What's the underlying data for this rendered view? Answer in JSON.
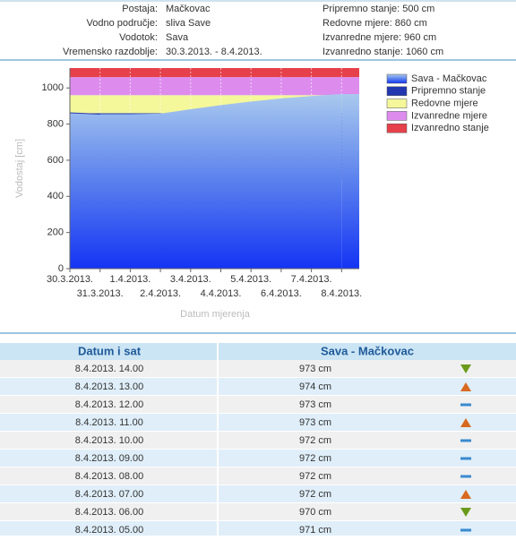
{
  "header": {
    "labels": [
      "Postaja:",
      "Vodno područje:",
      "Vodotok:",
      "Vremensko razdoblje:"
    ],
    "values": [
      "Mačkovac",
      "sliva Save",
      "Sava",
      "30.3.2013. - 8.4.2013."
    ],
    "levels": [
      "Pripremno stanje: 500 cm",
      "Redovne mjere: 860 cm",
      "Izvanredne mjere: 960 cm",
      "Izvanredno stanje: 1060 cm"
    ]
  },
  "chart_data": {
    "type": "area",
    "x_label": "Datum mjerenja",
    "y_label": "Vodostaj [cm]",
    "categories": [
      "30.3.2013.",
      "31.3.2013.",
      "1.4.2013.",
      "2.4.2013.",
      "3.4.2013.",
      "4.4.2013.",
      "5.4.2013.",
      "6.4.2013.",
      "7.4.2013.",
      "8.4.2013."
    ],
    "series": [
      {
        "name": "Sava - Mačkovac",
        "color": "#6d9ee6",
        "values": [
          862,
          855,
          855,
          858,
          882,
          905,
          925,
          942,
          955,
          966
        ]
      }
    ],
    "bands": [
      {
        "name": "Pripremno stanje",
        "color": "#2236b0",
        "from": 500
      },
      {
        "name": "Redovne mjere",
        "color": "#f4f79a",
        "from": 860
      },
      {
        "name": "Izvanredne mjere",
        "color": "#dd8cee",
        "from": 960
      },
      {
        "name": "Izvanredno stanje",
        "color": "#e6404a",
        "from": 1060
      }
    ],
    "ylim": [
      0,
      1110
    ],
    "yticks": [
      0,
      200,
      400,
      600,
      800,
      1000
    ]
  },
  "table": {
    "columns": [
      "Datum i sat",
      "Sava - Mačkovac"
    ],
    "rows": [
      [
        "8.4.2013. 14.00",
        "973 cm",
        "down"
      ],
      [
        "8.4.2013. 13.00",
        "974 cm",
        "up"
      ],
      [
        "8.4.2013. 12.00",
        "973 cm",
        "flat"
      ],
      [
        "8.4.2013. 11.00",
        "973 cm",
        "up"
      ],
      [
        "8.4.2013. 10.00",
        "972 cm",
        "flat"
      ],
      [
        "8.4.2013. 09.00",
        "972 cm",
        "flat"
      ],
      [
        "8.4.2013. 08.00",
        "972 cm",
        "flat"
      ],
      [
        "8.4.2013. 07.00",
        "972 cm",
        "up"
      ],
      [
        "8.4.2013. 06.00",
        "970 cm",
        "down"
      ],
      [
        "8.4.2013. 05.00",
        "971 cm",
        "flat"
      ]
    ]
  }
}
